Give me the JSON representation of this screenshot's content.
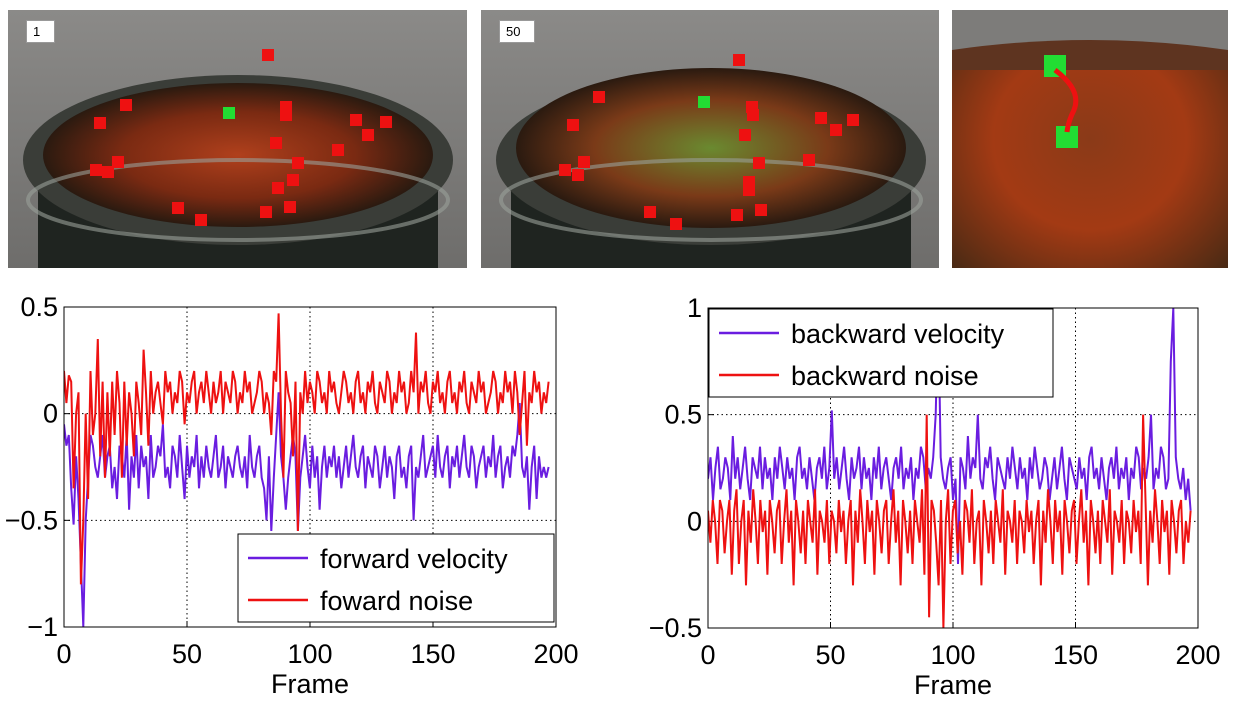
{
  "photos": [
    {
      "frame_label": "1"
    },
    {
      "frame_label": "50"
    },
    {
      "frame_label": ""
    }
  ],
  "colors": {
    "velocity": "#6a1de0",
    "noise": "#ee1111",
    "marker_red": "#ee1111",
    "marker_green": "#22dd33"
  },
  "chart_data": [
    {
      "type": "line",
      "xlabel": "Frame",
      "ylabel": "",
      "xlim": [
        0,
        200
      ],
      "ylim": [
        -1,
        0.5
      ],
      "xticks": [
        "0",
        "50",
        "100",
        "150",
        "200"
      ],
      "yticks": [
        "-1",
        "-0.5",
        "0",
        "0.5"
      ],
      "legend_position": "bottom-right",
      "grid": "dotted",
      "series": [
        {
          "name": "forward velocity",
          "color": "#6a1de0",
          "values": [
            -0.05,
            -0.15,
            -0.1,
            -0.35,
            -0.52,
            -0.2,
            -0.4,
            -0.7,
            -1.0,
            -0.5,
            -0.3,
            -0.1,
            -0.15,
            -0.25,
            -0.3,
            -0.2,
            -0.1,
            -0.3,
            -0.2,
            -0.15,
            -0.35,
            -0.25,
            -0.4,
            -0.15,
            -0.2,
            -0.3,
            -0.1,
            -0.45,
            -0.2,
            -0.3,
            -0.1,
            -0.35,
            -0.15,
            -0.25,
            -0.2,
            -0.4,
            -0.1,
            -0.3,
            -0.25,
            -0.15,
            -0.2,
            -0.05,
            -0.3,
            -0.25,
            -0.35,
            -0.15,
            -0.2,
            -0.3,
            -0.1,
            -0.25,
            -0.4,
            -0.15,
            -0.3,
            -0.2,
            -0.25,
            -0.1,
            -0.35,
            -0.2,
            -0.3,
            -0.15,
            -0.25,
            -0.3,
            -0.2,
            -0.1,
            -0.3,
            -0.25,
            -0.15,
            -0.35,
            -0.2,
            -0.25,
            -0.3,
            -0.2,
            -0.15,
            -0.25,
            -0.3,
            -0.2,
            -0.35,
            -0.1,
            -0.25,
            -0.3,
            -0.2,
            -0.15,
            -0.3,
            -0.35,
            -0.5,
            -0.2,
            -0.55,
            -0.3,
            -0.1,
            0.1,
            -0.2,
            -0.3,
            -0.45,
            -0.3,
            -0.2,
            -0.1,
            -0.2,
            -0.55,
            -0.3,
            -0.2,
            -0.1,
            -0.25,
            -0.35,
            -0.15,
            -0.3,
            -0.2,
            -0.45,
            -0.25,
            -0.15,
            -0.3,
            -0.2,
            -0.25,
            -0.15,
            -0.3,
            -0.2,
            -0.35,
            -0.25,
            -0.15,
            -0.3,
            -0.2,
            -0.1,
            -0.25,
            -0.3,
            -0.2,
            -0.15,
            -0.35,
            -0.2,
            -0.25,
            -0.3,
            -0.15,
            -0.2,
            -0.35,
            -0.25,
            -0.15,
            -0.3,
            -0.2,
            -0.25,
            -0.4,
            -0.2,
            -0.15,
            -0.3,
            -0.25,
            -0.35,
            -0.2,
            -0.15,
            -0.5,
            -0.25,
            -0.3,
            -0.2,
            -0.1,
            -0.3,
            -0.25,
            -0.2,
            -0.15,
            -0.3,
            -0.1,
            -0.25,
            -0.3,
            -0.2,
            -0.15,
            -0.35,
            -0.2,
            -0.25,
            -0.15,
            -0.3,
            -0.2,
            -0.1,
            -0.25,
            -0.3,
            -0.15,
            -0.2,
            -0.35,
            -0.25,
            -0.2,
            -0.15,
            -0.3,
            -0.2,
            -0.25,
            -0.1,
            -0.3,
            -0.2,
            -0.15,
            -0.35,
            -0.25,
            -0.2,
            -0.3,
            -0.15,
            -0.2,
            -0.1,
            0.05,
            -0.25,
            -0.3,
            -0.2,
            -0.45,
            -0.25,
            -0.15,
            -0.4,
            -0.2,
            -0.3,
            -0.25,
            -0.3,
            -0.25
          ]
        },
        {
          "name": "foward noise",
          "color": "#ee1111",
          "values": [
            0.2,
            0.05,
            0.18,
            0.15,
            -0.35,
            0.0,
            0.1,
            -0.8,
            -0.5,
            0.0,
            -0.4,
            0.2,
            -0.1,
            0.0,
            0.35,
            -0.2,
            0.15,
            -0.3,
            0.1,
            -0.2,
            0.15,
            -0.1,
            0.2,
            0.05,
            -0.3,
            0.15,
            -0.15,
            0.1,
            0.0,
            -0.2,
            0.15,
            0.05,
            -0.1,
            0.3,
            0.1,
            -0.15,
            0.2,
            0.0,
            0.1,
            0.15,
            0.05,
            -0.05,
            0.2,
            0.1,
            0.15,
            0.0,
            0.1,
            0.05,
            0.2,
            0.15,
            -0.05,
            0.1,
            0.05,
            0.15,
            0.2,
            0.0,
            0.1,
            0.15,
            0.05,
            0.2,
            0.1,
            0.0,
            0.15,
            0.05,
            0.1,
            0.2,
            0.0,
            0.15,
            0.1,
            0.05,
            0.2,
            0.15,
            0.0,
            0.1,
            0.05,
            0.2,
            0.1,
            0.15,
            0.0,
            0.05,
            0.1,
            0.2,
            0.15,
            0.0,
            0.1,
            0.05,
            -0.1,
            0.2,
            0.15,
            0.47,
            0.0,
            -0.3,
            0.2,
            0.1,
            0.05,
            -0.2,
            0.15,
            -0.55,
            0.1,
            0.0,
            0.2,
            0.05,
            0.15,
            0.1,
            0.0,
            0.2,
            0.15,
            0.05,
            0.1,
            0.0,
            0.2,
            0.1,
            0.15,
            0.05,
            0.0,
            0.1,
            0.2,
            0.15,
            0.05,
            0.1,
            0.0,
            0.15,
            0.2,
            0.05,
            0.1,
            0.0,
            0.15,
            0.1,
            0.2,
            0.05,
            0.0,
            0.15,
            0.1,
            0.05,
            0.2,
            0.15,
            0.0,
            0.1,
            0.05,
            0.2,
            0.1,
            0.15,
            0.0,
            0.05,
            0.2,
            0.1,
            0.38,
            0.0,
            0.15,
            0.1,
            0.2,
            0.05,
            0.0,
            0.15,
            0.1,
            0.2,
            0.05,
            0.1,
            0.0,
            0.15,
            0.2,
            0.05,
            0.1,
            0.0,
            0.15,
            0.1,
            0.2,
            0.05,
            0.0,
            0.15,
            0.1,
            0.05,
            0.2,
            0.1,
            0.15,
            0.0,
            0.05,
            0.1,
            0.2,
            0.15,
            0.0,
            0.1,
            0.05,
            0.2,
            0.1,
            0.15,
            0.0,
            0.2,
            0.1,
            -0.1,
            0.05,
            0.2,
            -0.15,
            0.1,
            0.05,
            0.2,
            0.1,
            0.15,
            0.0,
            0.1,
            0.05,
            0.15
          ]
        }
      ]
    },
    {
      "type": "line",
      "xlabel": "Frame",
      "ylabel": "",
      "xlim": [
        0,
        200
      ],
      "ylim": [
        -0.5,
        1
      ],
      "xticks": [
        "0",
        "50",
        "100",
        "150",
        "200"
      ],
      "yticks": [
        "-0.5",
        "0",
        "0.5",
        "1"
      ],
      "legend_position": "top-left",
      "grid": "dotted",
      "series": [
        {
          "name": "backward velocity",
          "color": "#6a1de0",
          "values": [
            0.2,
            0.3,
            0.1,
            0.25,
            0.35,
            0.15,
            0.2,
            0.3,
            0.25,
            0.1,
            0.4,
            0.2,
            0.3,
            0.15,
            0.25,
            0.35,
            0.2,
            0.1,
            0.3,
            0.25,
            0.2,
            0.35,
            0.15,
            0.3,
            0.2,
            0.25,
            0.1,
            0.3,
            0.2,
            0.35,
            0.25,
            0.15,
            0.3,
            0.2,
            0.25,
            0.1,
            0.3,
            0.35,
            0.2,
            0.25,
            0.15,
            0.3,
            0.2,
            0.1,
            0.25,
            0.3,
            0.2,
            0.35,
            0.15,
            0.25,
            0.52,
            0.2,
            0.3,
            0.15,
            0.25,
            0.35,
            0.2,
            0.1,
            0.3,
            0.2,
            0.25,
            0.35,
            0.15,
            0.3,
            0.2,
            0.25,
            0.1,
            0.3,
            0.2,
            0.35,
            0.15,
            0.25,
            0.3,
            0.2,
            0.1,
            0.25,
            0.3,
            0.2,
            0.35,
            0.15,
            0.25,
            0.2,
            0.3,
            0.1,
            0.25,
            0.2,
            0.35,
            0.3,
            0.15,
            0.25,
            0.2,
            0.3,
            0.5,
            1.0,
            0.3,
            0.2,
            0.15,
            0.25,
            0.3,
            0.1,
            0.2,
            -0.2,
            0.3,
            0.25,
            0.15,
            0.4,
            0.2,
            0.3,
            0.25,
            0.5,
            0.2,
            0.15,
            0.3,
            0.25,
            0.35,
            0.2,
            0.1,
            0.3,
            0.25,
            0.2,
            0.15,
            0.3,
            0.2,
            0.35,
            0.25,
            0.15,
            0.3,
            0.2,
            0.25,
            0.1,
            0.3,
            0.2,
            0.35,
            0.25,
            0.15,
            0.2,
            0.3,
            0.25,
            0.1,
            0.2,
            0.3,
            0.15,
            0.25,
            0.35,
            0.2,
            0.1,
            0.3,
            0.25,
            0.2,
            0.15,
            0.3,
            0.2,
            0.25,
            0.1,
            0.3,
            0.35,
            0.2,
            0.25,
            0.15,
            0.3,
            0.2,
            0.1,
            0.25,
            0.3,
            0.2,
            0.35,
            0.15,
            0.25,
            0.2,
            0.3,
            0.1,
            0.25,
            0.2,
            0.35,
            0.3,
            0.15,
            0.25,
            0.2,
            0.3,
            0.5,
            0.15,
            0.25,
            0.2,
            0.35,
            0.3,
            0.15,
            0.2,
            0.75,
            1.0,
            0.3,
            0.2,
            0.15,
            0.25,
            0.1,
            0.2,
            0.05
          ]
        },
        {
          "name": "backward noise",
          "color": "#ee1111",
          "values": [
            0.05,
            -0.1,
            0.1,
            0.0,
            -0.2,
            0.1,
            0.05,
            -0.15,
            0.0,
            0.1,
            -0.25,
            0.05,
            0.15,
            -0.2,
            0.0,
            0.1,
            -0.3,
            0.05,
            -0.1,
            0.15,
            0.0,
            -0.2,
            0.1,
            -0.05,
            0.05,
            -0.25,
            0.1,
            0.0,
            -0.15,
            0.05,
            0.1,
            -0.2,
            0.0,
            0.15,
            -0.1,
            0.05,
            -0.3,
            0.1,
            0.0,
            -0.15,
            0.05,
            -0.2,
            0.1,
            0.0,
            -0.1,
            0.15,
            -0.25,
            0.05,
            0.0,
            -0.1,
            0.1,
            -0.2,
            0.05,
            0.0,
            -0.15,
            0.1,
            -0.05,
            0.05,
            -0.2,
            0.0,
            0.1,
            -0.3,
            0.05,
            -0.1,
            0.15,
            0.0,
            -0.2,
            0.1,
            -0.05,
            0.05,
            -0.25,
            0.1,
            0.0,
            -0.15,
            0.05,
            0.1,
            -0.2,
            0.0,
            0.15,
            -0.1,
            0.05,
            -0.3,
            0.1,
            0.0,
            -0.15,
            0.05,
            -0.2,
            0.1,
            0.0,
            -0.1,
            0.15,
            -0.25,
            0.5,
            -0.45,
            0.1,
            0.05,
            -0.1,
            -0.3,
            0.1,
            -0.5,
            0.0,
            0.15,
            -0.2,
            0.05,
            0.1,
            -0.15,
            0.0,
            -0.25,
            0.1,
            0.05,
            -0.1,
            0.15,
            -0.2,
            0.0,
            0.05,
            -0.3,
            0.1,
            0.0,
            -0.15,
            0.05,
            -0.2,
            0.1,
            0.0,
            -0.1,
            0.15,
            -0.25,
            0.05,
            0.0,
            -0.1,
            0.1,
            -0.2,
            0.05,
            0.0,
            -0.15,
            0.1,
            -0.05,
            0.05,
            -0.2,
            0.0,
            0.1,
            -0.3,
            0.05,
            -0.1,
            0.15,
            0.0,
            -0.2,
            0.1,
            -0.05,
            0.05,
            -0.25,
            0.1,
            0.0,
            -0.15,
            0.05,
            0.1,
            -0.2,
            0.0,
            0.15,
            -0.1,
            0.05,
            -0.3,
            0.1,
            0.0,
            -0.15,
            0.05,
            -0.2,
            0.1,
            0.0,
            -0.1,
            0.15,
            -0.25,
            0.05,
            0.0,
            -0.1,
            0.1,
            -0.2,
            0.05,
            0.0,
            -0.15,
            0.1,
            -0.05,
            0.05,
            -0.2,
            0.5,
            0.1,
            -0.3,
            0.05,
            -0.1,
            0.15,
            0.0,
            -0.2,
            0.1,
            -0.05,
            0.05,
            -0.25,
            0.1,
            0.0,
            -0.15,
            0.05,
            0.1,
            -0.2,
            0.0,
            -0.1,
            0.05
          ]
        }
      ]
    }
  ]
}
